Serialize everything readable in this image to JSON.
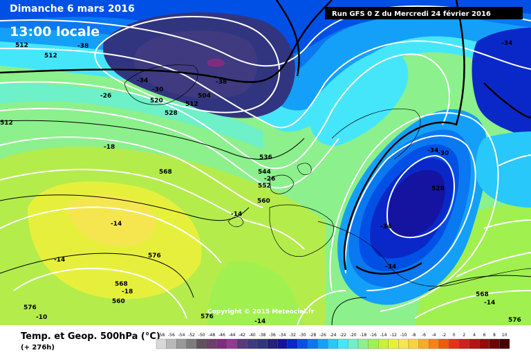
{
  "header": {
    "date": "Dimanche 6 mars 2016",
    "local_time": "13:00 locale",
    "run": "Run GFS 0 Z du Mercredi 24 février 2016"
  },
  "legend": {
    "title": "Temp. et Geop. 500hPa (°C)",
    "forecast_hour": "(+ 276h)",
    "scale": [
      {
        "v": "-58",
        "c": "#d8d8d8"
      },
      {
        "v": "-56",
        "c": "#b8b8b8"
      },
      {
        "v": "-54",
        "c": "#989898"
      },
      {
        "v": "-52",
        "c": "#7c7c7c"
      },
      {
        "v": "-50",
        "c": "#605060"
      },
      {
        "v": "-48",
        "c": "#6c3f6c"
      },
      {
        "v": "-46",
        "c": "#7e2d7e"
      },
      {
        "v": "-44",
        "c": "#903a90"
      },
      {
        "v": "-42",
        "c": "#5a3a78"
      },
      {
        "v": "-40",
        "c": "#403a80"
      },
      {
        "v": "-38",
        "c": "#313580"
      },
      {
        "v": "-36",
        "c": "#26207e"
      },
      {
        "v": "-34",
        "c": "#1414a0"
      },
      {
        "v": "-32",
        "c": "#0a28c8"
      },
      {
        "v": "-30",
        "c": "#0050e6"
      },
      {
        "v": "-28",
        "c": "#0a78f0"
      },
      {
        "v": "-26",
        "c": "#14a0f8"
      },
      {
        "v": "-24",
        "c": "#28c8fa"
      },
      {
        "v": "-22",
        "c": "#46e6fa"
      },
      {
        "v": "-20",
        "c": "#6ef0c8"
      },
      {
        "v": "-18",
        "c": "#8cf08c"
      },
      {
        "v": "-16",
        "c": "#a0f050"
      },
      {
        "v": "-14",
        "c": "#c8f03c"
      },
      {
        "v": "-12",
        "c": "#e6f03c"
      },
      {
        "v": "-10",
        "c": "#f5e650"
      },
      {
        "v": "-8",
        "c": "#fad23c"
      },
      {
        "v": "-6",
        "c": "#faaa28"
      },
      {
        "v": "-4",
        "c": "#fa8214"
      },
      {
        "v": "-2",
        "c": "#f05a0a"
      },
      {
        "v": "0",
        "c": "#e63214"
      },
      {
        "v": "2",
        "c": "#d21e1e"
      },
      {
        "v": "4",
        "c": "#b41414"
      },
      {
        "v": "6",
        "c": "#960a0a"
      },
      {
        "v": "8",
        "c": "#6e0505"
      },
      {
        "v": "10",
        "c": "#460000"
      }
    ]
  },
  "copyright": "Copyright © 2015 Meteociel.fr",
  "contour_labels": {
    "l1": "512",
    "l2": "-38",
    "l3": "512",
    "l4": "-34",
    "l5": "-30",
    "l6": "-26",
    "l7": "520",
    "l8": "528",
    "l9": "512",
    "l10": "504",
    "l11": "-38",
    "l12": "-18",
    "l13": "568",
    "l14": "536",
    "l15": "544",
    "l16": "-26",
    "l17": "552",
    "l18": "560",
    "l19": "-14",
    "l20": "-14",
    "l21": "576",
    "l22": "568",
    "l23": "-18",
    "l24": "560",
    "l25": "576",
    "l26": "-10",
    "l27": "576",
    "l28": "-14",
    "l29": "-34",
    "l30": "-34",
    "l31": "-30",
    "l32": "528",
    "l33": "-34",
    "l34": "-34",
    "l35": "568",
    "l36": "-14",
    "l37": "576",
    "l38": "-14",
    "l39": "512"
  },
  "colors": {
    "deep": "#26207e",
    "cold": "#0a28c8",
    "blue": "#0a78f0",
    "cyan": "#46e6fa",
    "green": "#8cf08c",
    "lime": "#c8f03c",
    "yellow": "#f5e650",
    "purple": "#7e2d7e"
  }
}
